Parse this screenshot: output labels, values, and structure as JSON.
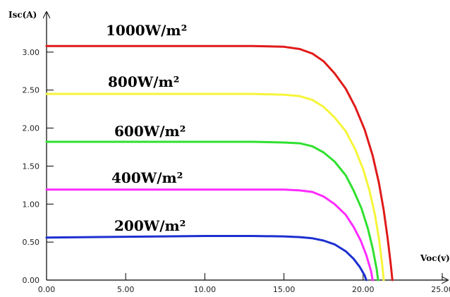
{
  "chart_data": {
    "type": "line",
    "ylabel": "Isc(A)",
    "xlabel": "Voc(v)",
    "xlim": [
      0,
      25
    ],
    "ylim": [
      0,
      3.5
    ],
    "x_ticks": [
      "0.00",
      "5.00",
      "10.00",
      "15.00",
      "20.00",
      "25.00"
    ],
    "y_ticks": [
      "0.00",
      "0.50",
      "1.00",
      "1.50",
      "2.00",
      "2.50",
      "3.00"
    ],
    "series": [
      {
        "name": "1000W/m²",
        "color": "#e01a1a",
        "points": [
          [
            0,
            3.08
          ],
          [
            13,
            3.08
          ],
          [
            15,
            3.07
          ],
          [
            16,
            3.04
          ],
          [
            16.8,
            2.98
          ],
          [
            17.5,
            2.88
          ],
          [
            18.2,
            2.72
          ],
          [
            18.9,
            2.52
          ],
          [
            19.5,
            2.28
          ],
          [
            20.1,
            1.98
          ],
          [
            20.6,
            1.64
          ],
          [
            21.0,
            1.28
          ],
          [
            21.3,
            0.92
          ],
          [
            21.55,
            0.55
          ],
          [
            21.75,
            0.2
          ],
          [
            21.85,
            0
          ]
        ]
      },
      {
        "name": "800W/m²",
        "color": "#f5f53a",
        "points": [
          [
            0,
            2.45
          ],
          [
            13,
            2.45
          ],
          [
            15,
            2.44
          ],
          [
            16,
            2.42
          ],
          [
            16.8,
            2.37
          ],
          [
            17.5,
            2.28
          ],
          [
            18.2,
            2.14
          ],
          [
            18.9,
            1.96
          ],
          [
            19.5,
            1.72
          ],
          [
            20.0,
            1.46
          ],
          [
            20.4,
            1.18
          ],
          [
            20.75,
            0.86
          ],
          [
            21.0,
            0.55
          ],
          [
            21.2,
            0.22
          ],
          [
            21.3,
            0
          ]
        ]
      },
      {
        "name": "600W/m²",
        "color": "#2fe02f",
        "points": [
          [
            0,
            1.82
          ],
          [
            13,
            1.82
          ],
          [
            15,
            1.81
          ],
          [
            16,
            1.8
          ],
          [
            16.8,
            1.76
          ],
          [
            17.5,
            1.68
          ],
          [
            18.2,
            1.56
          ],
          [
            18.9,
            1.38
          ],
          [
            19.4,
            1.18
          ],
          [
            19.9,
            0.94
          ],
          [
            20.3,
            0.68
          ],
          [
            20.6,
            0.42
          ],
          [
            20.85,
            0.15
          ],
          [
            20.95,
            0
          ]
        ]
      },
      {
        "name": "400W/m²",
        "color": "#ff2bff",
        "points": [
          [
            0,
            1.19
          ],
          [
            13,
            1.19
          ],
          [
            15,
            1.19
          ],
          [
            16,
            1.18
          ],
          [
            16.8,
            1.16
          ],
          [
            17.5,
            1.1
          ],
          [
            18.2,
            1.0
          ],
          [
            18.9,
            0.86
          ],
          [
            19.4,
            0.7
          ],
          [
            19.85,
            0.52
          ],
          [
            20.2,
            0.33
          ],
          [
            20.5,
            0.12
          ],
          [
            20.6,
            0
          ]
        ]
      },
      {
        "name": "200W/m²",
        "color": "#1c2fd0",
        "points": [
          [
            0,
            0.56
          ],
          [
            10,
            0.58
          ],
          [
            13,
            0.58
          ],
          [
            15,
            0.575
          ],
          [
            16,
            0.565
          ],
          [
            16.8,
            0.55
          ],
          [
            17.5,
            0.52
          ],
          [
            18.2,
            0.47
          ],
          [
            18.9,
            0.38
          ],
          [
            19.4,
            0.28
          ],
          [
            19.8,
            0.17
          ],
          [
            20.1,
            0.06
          ],
          [
            20.2,
            0
          ]
        ]
      }
    ]
  }
}
